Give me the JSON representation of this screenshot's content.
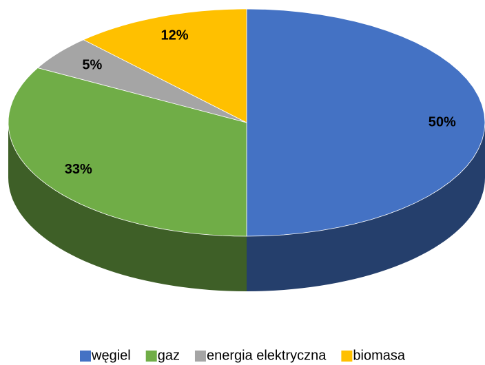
{
  "chart_data": {
    "type": "pie",
    "three_d": true,
    "categories": [
      "węgiel",
      "gaz",
      "energia elektryczna",
      "biomasa"
    ],
    "values": [
      50,
      33,
      5,
      12
    ],
    "value_labels": [
      "50%",
      "33%",
      "5%",
      "12%"
    ],
    "colors": [
      "#4472c4",
      "#70ad47",
      "#a5a5a5",
      "#ffc000"
    ],
    "legend": "bottom"
  }
}
